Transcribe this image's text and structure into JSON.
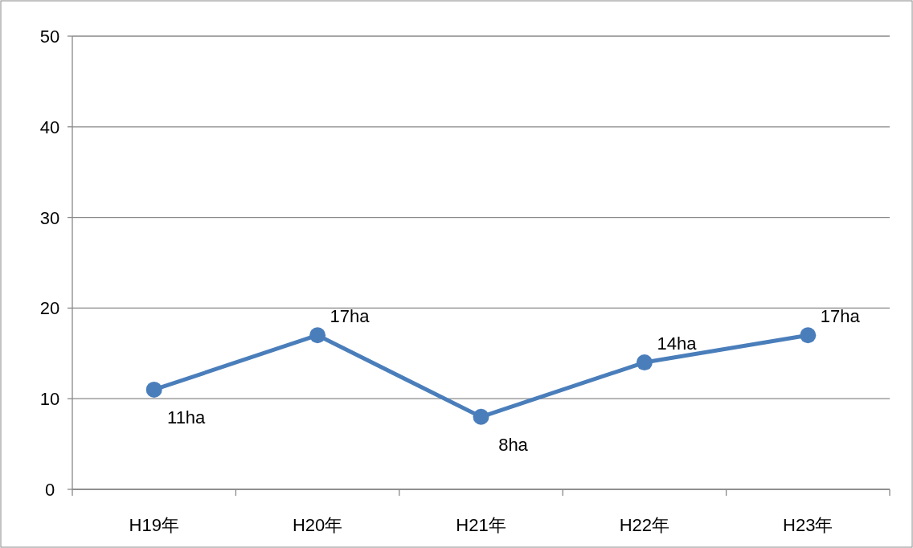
{
  "chart_data": {
    "type": "line",
    "categories": [
      "H19年",
      "H20年",
      "H21年",
      "H22年",
      "H23年"
    ],
    "series": [
      {
        "color": "#4a7ebb",
        "values": [
          11,
          17,
          8,
          14,
          17
        ],
        "value_labels": [
          "11ha",
          "17ha",
          "8ha",
          "14ha",
          "17ha"
        ]
      }
    ],
    "ylim": [
      0,
      50
    ],
    "yticks": [
      0,
      10,
      20,
      30,
      40,
      50
    ],
    "grid": "y",
    "marker": "circle",
    "line_style": "solid"
  }
}
